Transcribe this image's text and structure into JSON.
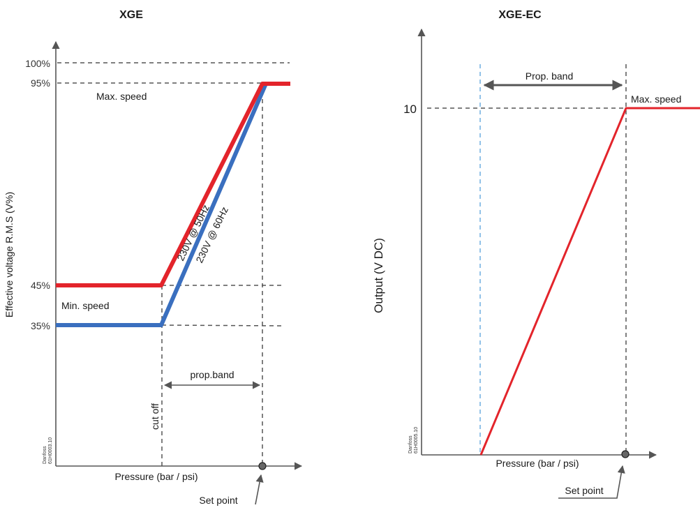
{
  "left_chart": {
    "title": "XGE",
    "y_label": "Effective voltage R.M.S (V%)",
    "x_label": "Pressure (bar / psi)",
    "ticks": [
      "100%",
      "95%",
      "45%",
      "35%"
    ],
    "max_speed": "Max. speed",
    "min_speed": "Min. speed",
    "line_50hz": "230V @ 50Hz",
    "line_60hz": "230V @ 60Hz",
    "prop_band": "prop.band",
    "cut_off": "cut off",
    "set_point": "Set point",
    "code_line1": "Danfoss",
    "code_line2": "61H0003.10",
    "colors": {
      "line_50hz": "#e3242b",
      "line_60hz": "#3a6fbf"
    }
  },
  "right_chart": {
    "title": "XGE-EC",
    "y_label": "Output  (V DC)",
    "x_label": "Pressure (bar / psi)",
    "tick_10": "10",
    "max_speed": "Max. speed",
    "prop_band": "Prop. band",
    "set_point": "Set point",
    "code_line1": "Danfoss",
    "code_line2": "61H0005.10",
    "colors": {
      "output_line": "#e3242b"
    }
  }
}
